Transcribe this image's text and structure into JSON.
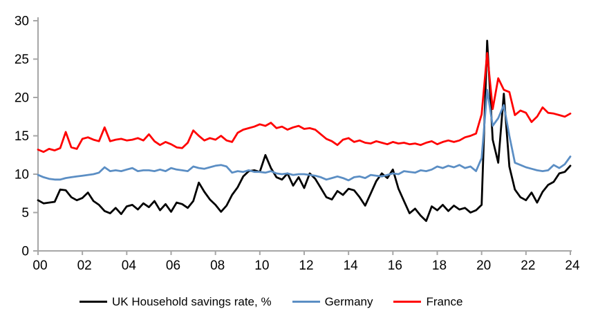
{
  "chart_data": {
    "type": "line",
    "title": "",
    "xlabel": "",
    "ylabel": "",
    "x_unit": "year",
    "frequency": "quarterly",
    "x_start": "2000Q1",
    "x_end": "2024Q1",
    "ylim": [
      0,
      30
    ],
    "y_tick_step": 5,
    "grid": false,
    "legend_position": "bottom",
    "axis_color": "#A6A6A6",
    "y_tick_labels": [
      "0",
      "5",
      "10",
      "15",
      "20",
      "25",
      "30"
    ],
    "x_tick_labels": [
      "00",
      "02",
      "04",
      "06",
      "08",
      "10",
      "12",
      "14",
      "16",
      "18",
      "20",
      "22",
      "24"
    ],
    "series": [
      {
        "id": "uk",
        "name": "UK Household savings rate, %",
        "color": "#000000",
        "values": [
          6.6,
          6.2,
          6.3,
          6.4,
          8.0,
          7.9,
          7.0,
          6.6,
          6.9,
          7.6,
          6.5,
          6.0,
          5.2,
          4.9,
          5.6,
          4.8,
          5.8,
          6.0,
          5.4,
          6.2,
          5.7,
          6.5,
          5.3,
          6.1,
          5.1,
          6.3,
          6.1,
          5.6,
          6.5,
          8.9,
          7.7,
          6.7,
          6.0,
          5.1,
          5.9,
          7.3,
          8.3,
          9.7,
          10.4,
          10.5,
          10.3,
          12.5,
          10.8,
          9.6,
          9.3,
          10.1,
          8.5,
          9.6,
          8.2,
          10.1,
          9.4,
          8.2,
          7.0,
          6.7,
          7.8,
          7.3,
          8.1,
          7.9,
          7.0,
          5.9,
          7.5,
          9.1,
          10.1,
          9.5,
          10.6,
          8.1,
          6.5,
          4.9,
          5.5,
          4.6,
          3.9,
          5.8,
          5.3,
          6.0,
          5.2,
          5.9,
          5.4,
          5.6,
          5.0,
          5.3,
          6.0,
          27.4,
          14.5,
          11.5,
          20.5,
          11.0,
          8.0,
          7.0,
          6.6,
          7.6,
          6.3,
          7.7,
          8.6,
          9.0,
          10.1,
          10.3,
          11.1
        ]
      },
      {
        "id": "germany",
        "name": "Germany",
        "color": "#5B8EC4",
        "values": [
          9.9,
          9.6,
          9.4,
          9.3,
          9.3,
          9.5,
          9.6,
          9.7,
          9.8,
          9.9,
          10.0,
          10.2,
          10.9,
          10.4,
          10.5,
          10.4,
          10.6,
          10.8,
          10.4,
          10.5,
          10.5,
          10.4,
          10.6,
          10.4,
          10.8,
          10.6,
          10.5,
          10.4,
          11.0,
          10.8,
          10.7,
          10.9,
          11.1,
          11.2,
          11.0,
          10.2,
          10.4,
          10.3,
          10.5,
          10.3,
          10.3,
          10.2,
          10.4,
          10.1,
          10.0,
          10.1,
          9.9,
          10.0,
          10.0,
          9.9,
          9.8,
          9.6,
          9.3,
          9.5,
          9.7,
          9.5,
          9.2,
          9.6,
          9.7,
          9.5,
          9.9,
          9.8,
          9.7,
          9.9,
          10.1,
          10.0,
          10.4,
          10.3,
          10.2,
          10.5,
          10.4,
          10.6,
          11.0,
          10.8,
          11.1,
          10.9,
          11.2,
          10.8,
          11.0,
          10.4,
          12.1,
          21.0,
          16.3,
          17.3,
          19.0,
          15.0,
          11.5,
          11.2,
          10.9,
          10.7,
          10.5,
          10.4,
          10.5,
          11.2,
          10.8,
          11.3,
          12.3
        ]
      },
      {
        "id": "france",
        "name": "France",
        "color": "#FF0000",
        "values": [
          13.2,
          12.9,
          13.3,
          13.1,
          13.4,
          15.5,
          13.5,
          13.3,
          14.6,
          14.8,
          14.5,
          14.3,
          16.1,
          14.3,
          14.5,
          14.6,
          14.4,
          14.5,
          14.7,
          14.4,
          15.2,
          14.3,
          13.8,
          14.2,
          13.9,
          13.5,
          13.4,
          14.1,
          15.7,
          15.0,
          14.4,
          14.7,
          14.5,
          15.0,
          14.4,
          14.2,
          15.4,
          15.8,
          16.0,
          16.2,
          16.5,
          16.3,
          16.7,
          16.0,
          16.2,
          15.8,
          16.1,
          16.3,
          15.9,
          16.0,
          15.8,
          15.2,
          14.6,
          14.3,
          13.8,
          14.5,
          14.7,
          14.2,
          14.4,
          14.1,
          14.0,
          14.3,
          14.1,
          13.9,
          14.2,
          14.0,
          14.1,
          13.9,
          14.0,
          13.8,
          14.1,
          14.3,
          13.9,
          14.2,
          14.4,
          14.2,
          14.4,
          14.8,
          15.0,
          15.3,
          17.8,
          25.8,
          18.5,
          22.5,
          21.0,
          20.7,
          17.7,
          18.3,
          18.0,
          16.8,
          17.5,
          18.7,
          18.0,
          17.9,
          17.7,
          17.5,
          17.9
        ]
      }
    ]
  }
}
